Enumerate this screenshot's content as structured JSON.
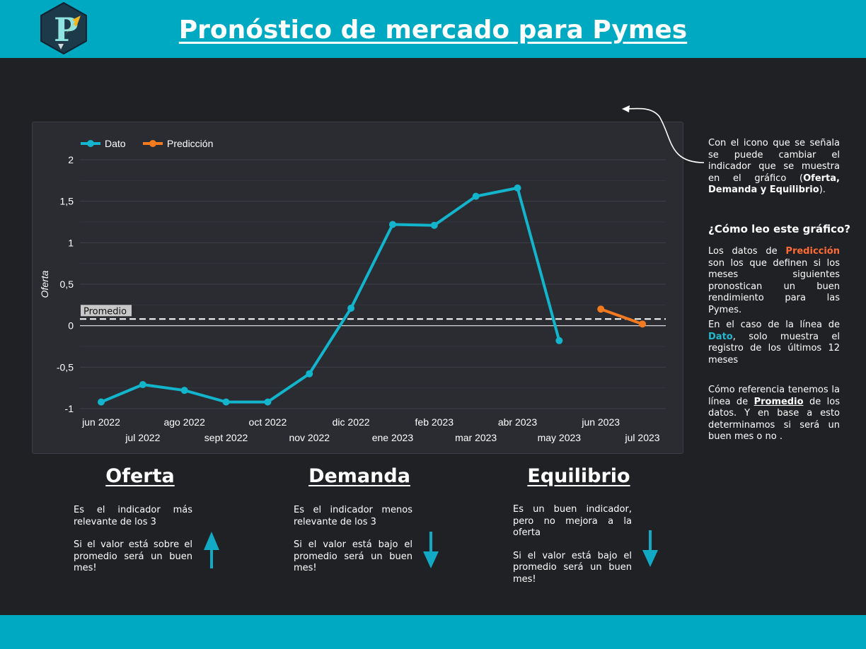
{
  "header": {
    "title": "Pronóstico de mercado para Pymes"
  },
  "colors": {
    "accent": "#00a9c2",
    "dato": "#12b5cc",
    "prediccion": "#f47a20",
    "background": "#202124"
  },
  "side_notes": {
    "indicator_note_a": "Con el icono que se señala se puede cambiar el indicador que se muestra en el gráfico (",
    "indicator_note_b": "Oferta, Demanda y Equilibrio",
    "indicator_note_c": ").",
    "question": "¿Cómo leo este gráfico?",
    "pred_a": "Los datos de ",
    "pred_b": "Predicción",
    "pred_c": " son los que definen si los meses siguientes pronostican un buen rendimiento para las Pymes.",
    "dato_a": "En el caso de la línea de ",
    "dato_b": "Dato",
    "dato_c": ", solo muestra el registro de los últimos 12 meses",
    "prom_a": "Cómo referencia tenemos la línea de ",
    "prom_b": "Promedio",
    "prom_c": " de los datos. Y en base a esto determinamos si será un buen mes o no ."
  },
  "indicators": [
    {
      "title": "Oferta",
      "text1": "Es el indicador más relevante de los 3",
      "text2": "Si el valor está sobre el promedio será un buen mes!",
      "arrow": "up"
    },
    {
      "title": "Demanda",
      "text1": "Es el indicador menos relevante de los 3",
      "text2": "Si el valor está bajo el promedio será un buen mes!",
      "arrow": "down"
    },
    {
      "title": "Equilibrio",
      "text1": "Es un buen indicador, pero no mejora a la oferta",
      "text2": "Si el valor está bajo el promedio será un buen mes!",
      "arrow": "down"
    }
  ],
  "chart_data": {
    "type": "line",
    "ylabel": "Oferta",
    "ylim": [
      -1,
      2
    ],
    "yticks": [
      -1,
      -0.5,
      0,
      0.5,
      1,
      1.5,
      2
    ],
    "ytick_labels": [
      "-1",
      "-0,5",
      "0",
      "0,5",
      "1",
      "1,5",
      "2"
    ],
    "categories": [
      "jun 2022",
      "jul 2022",
      "ago 2022",
      "sept 2022",
      "oct 2022",
      "nov 2022",
      "dic 2022",
      "ene 2023",
      "feb 2023",
      "mar 2023",
      "abr 2023",
      "may 2023",
      "jun 2023",
      "jul 2023"
    ],
    "legend_position": "top-left",
    "reference_line": {
      "label": "Promedio",
      "value": 0.08
    },
    "series": [
      {
        "name": "Dato",
        "color": "#12b5cc",
        "values": [
          -0.92,
          -0.71,
          -0.78,
          -0.92,
          -0.92,
          -0.58,
          0.21,
          1.22,
          1.21,
          1.56,
          1.66,
          -0.18,
          null,
          null
        ]
      },
      {
        "name": "Predicción",
        "color": "#f47a20",
        "values": [
          null,
          null,
          null,
          null,
          null,
          null,
          null,
          null,
          null,
          null,
          null,
          null,
          0.2,
          0.02
        ]
      }
    ]
  }
}
